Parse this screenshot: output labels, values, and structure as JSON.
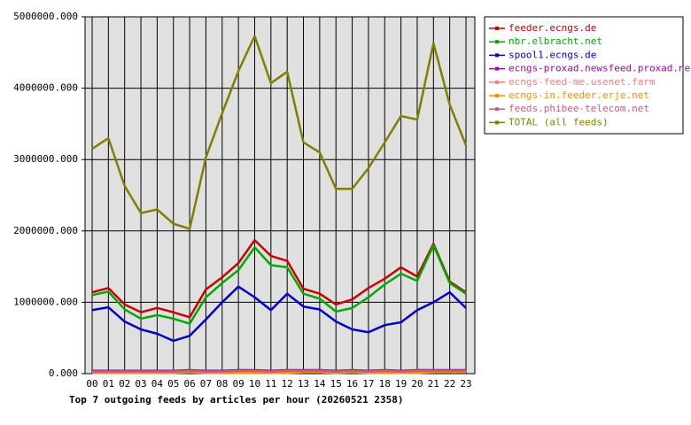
{
  "chart_data": {
    "type": "line",
    "title": "Top 7 outgoing feeds by articles per hour (20260521 2358)",
    "categories": [
      "00",
      "01",
      "02",
      "03",
      "04",
      "05",
      "06",
      "07",
      "08",
      "09",
      "10",
      "11",
      "12",
      "13",
      "14",
      "15",
      "16",
      "17",
      "18",
      "19",
      "20",
      "21",
      "22",
      "23"
    ],
    "ylim": [
      0,
      5000000
    ],
    "yticks": [
      {
        "value": 0,
        "label": "0.000"
      },
      {
        "value": 1000000,
        "label": "1000000.000"
      },
      {
        "value": 2000000,
        "label": "2000000.000"
      },
      {
        "value": 3000000,
        "label": "3000000.000"
      },
      {
        "value": 4000000,
        "label": "4000000.000"
      },
      {
        "value": 5000000,
        "label": "5000000.000"
      }
    ],
    "grid": true,
    "legend": "right",
    "series": [
      {
        "name": "feeder.ecngs.de",
        "color": "#cc0000",
        "values": [
          1140000,
          1200000,
          970000,
          860000,
          920000,
          860000,
          790000,
          1180000,
          1350000,
          1550000,
          1870000,
          1650000,
          1580000,
          1190000,
          1120000,
          970000,
          1040000,
          1200000,
          1330000,
          1490000,
          1360000,
          1820000,
          1290000,
          1140000
        ]
      },
      {
        "name": "nbr.elbracht.net",
        "color": "#00aa00",
        "values": [
          1100000,
          1150000,
          900000,
          770000,
          820000,
          770000,
          700000,
          1070000,
          1270000,
          1450000,
          1770000,
          1520000,
          1490000,
          1120000,
          1050000,
          870000,
          920000,
          1070000,
          1250000,
          1400000,
          1300000,
          1800000,
          1270000,
          1120000
        ]
      },
      {
        "name": "spool1.ecngs.de",
        "color": "#0000cc",
        "values": [
          890000,
          930000,
          730000,
          620000,
          560000,
          460000,
          530000,
          760000,
          1000000,
          1220000,
          1070000,
          890000,
          1120000,
          940000,
          900000,
          730000,
          620000,
          580000,
          680000,
          720000,
          890000,
          1000000,
          1140000,
          920000
        ]
      },
      {
        "name": "ecngs-proxad.newsfeed.proxad.net",
        "color": "#aa00aa",
        "values": [
          40000,
          40000,
          40000,
          40000,
          40000,
          40000,
          50000,
          40000,
          40000,
          50000,
          50000,
          40000,
          50000,
          50000,
          50000,
          40000,
          50000,
          40000,
          50000,
          40000,
          50000,
          50000,
          50000,
          50000
        ]
      },
      {
        "name": "ecngs-feed-me.usenet.farm",
        "color": "#f08080",
        "values": [
          20000,
          20000,
          20000,
          20000,
          20000,
          20000,
          30000,
          20000,
          20000,
          30000,
          20000,
          20000,
          20000,
          30000,
          30000,
          20000,
          30000,
          20000,
          20000,
          20000,
          30000,
          30000,
          30000,
          30000
        ]
      },
      {
        "name": "ecngs-in.feeder.erje.net",
        "color": "#ff8c00",
        "values": [
          10000,
          10000,
          10000,
          10000,
          10000,
          10000,
          20000,
          10000,
          10000,
          10000,
          10000,
          10000,
          10000,
          20000,
          20000,
          10000,
          20000,
          10000,
          10000,
          10000,
          10000,
          20000,
          20000,
          20000
        ]
      },
      {
        "name": "feeds.phibee-telecom.net",
        "color": "#c06080",
        "values": [
          30000,
          30000,
          30000,
          30000,
          30000,
          30000,
          40000,
          30000,
          30000,
          40000,
          40000,
          30000,
          40000,
          40000,
          40000,
          30000,
          40000,
          30000,
          40000,
          30000,
          40000,
          40000,
          40000,
          40000
        ]
      },
      {
        "name": "TOTAL (all feeds)",
        "color": "#808000",
        "values": [
          3150000,
          3300000,
          2630000,
          2250000,
          2300000,
          2100000,
          2030000,
          3030000,
          3650000,
          4240000,
          4730000,
          4070000,
          4230000,
          3240000,
          3100000,
          2590000,
          2590000,
          2880000,
          3240000,
          3610000,
          3560000,
          4630000,
          3770000,
          3200000
        ]
      }
    ]
  }
}
